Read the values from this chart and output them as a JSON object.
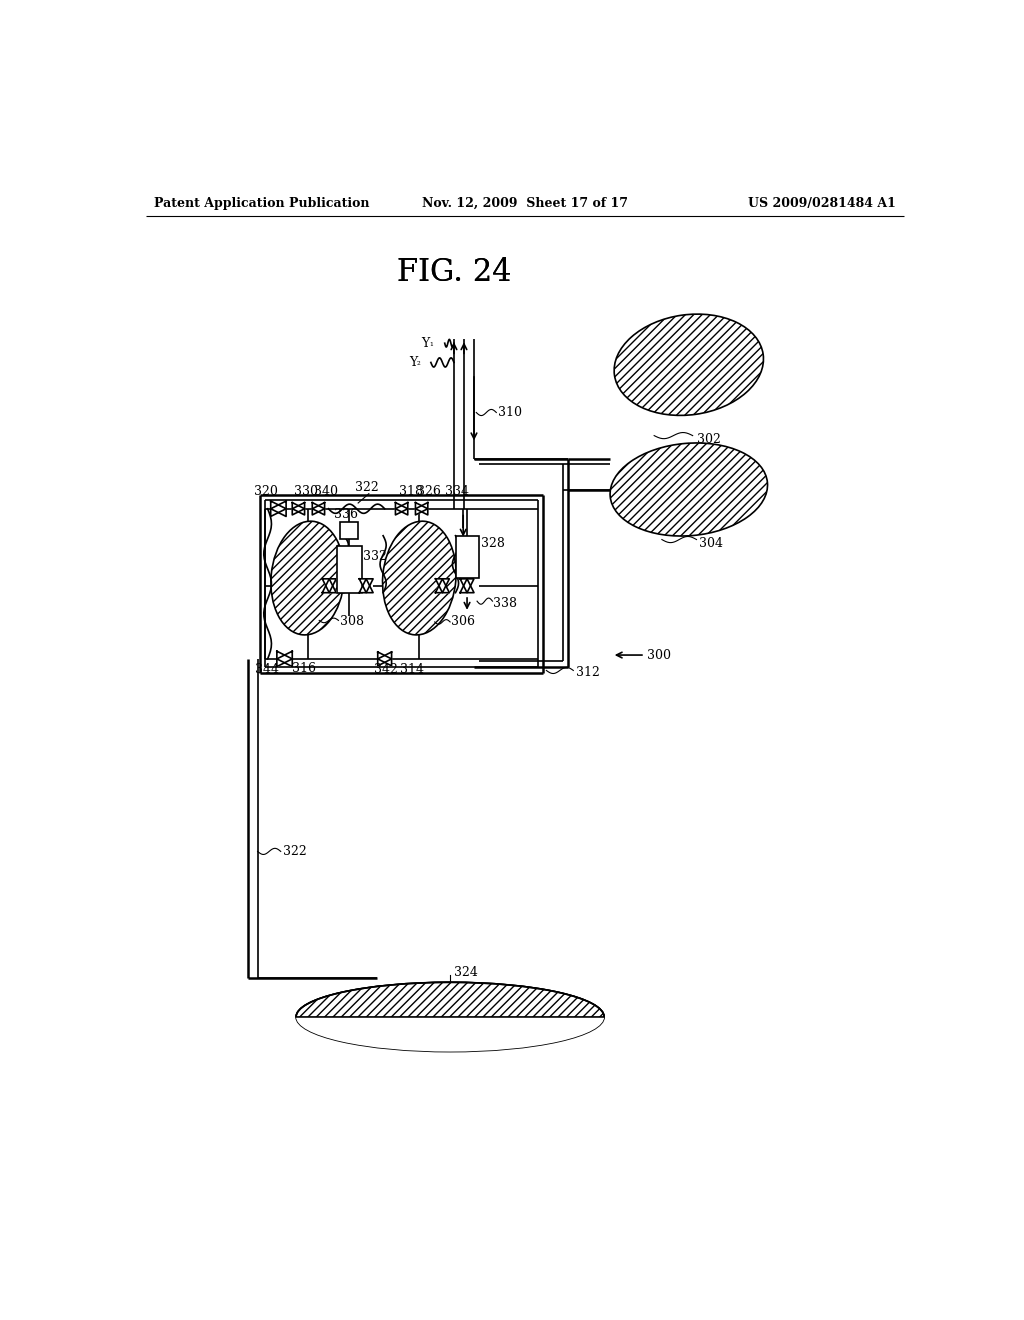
{
  "bg_color": "#ffffff",
  "header_left": "Patent Application Publication",
  "header_mid": "Nov. 12, 2009  Sheet 17 of 17",
  "header_right": "US 2009/0281484 A1",
  "fig_title": "FIG. 24",
  "line_color": "#000000"
}
